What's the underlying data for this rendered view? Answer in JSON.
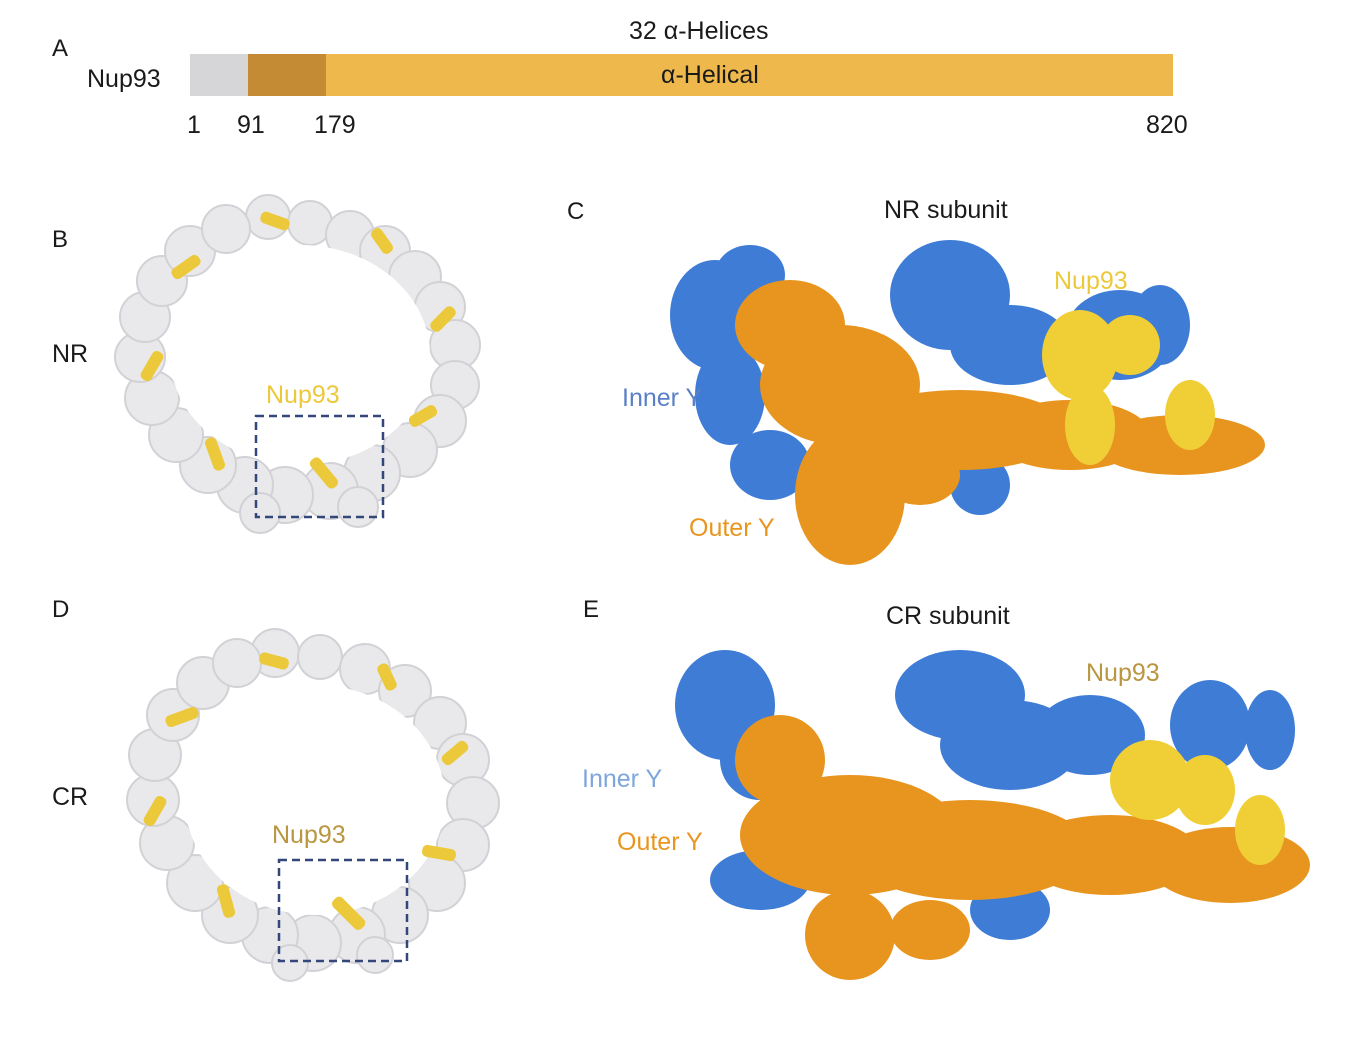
{
  "panels": {
    "a": {
      "letter": "A",
      "protein": "Nup93",
      "top_label": "32 α-Helices",
      "domain_label": "α-Helical",
      "positions": [
        "1",
        "91",
        "179",
        "820"
      ],
      "colors": {
        "n_terminal": "#d6d6d8",
        "linker": "#c48a34",
        "helical": "#eeb84d"
      }
    },
    "b": {
      "letter": "B",
      "ring_label": "NR",
      "nup_label": "Nup93",
      "nup_color": "#ecc93a"
    },
    "c": {
      "letter": "C",
      "title": "NR subunit",
      "inner_label": "Inner Y",
      "outer_label": "Outer Y",
      "nup_label": "Nup93"
    },
    "d": {
      "letter": "D",
      "ring_label": "CR",
      "nup_label": "Nup93",
      "nup_color": "#b9963f"
    },
    "e": {
      "letter": "E",
      "title": "CR subunit",
      "inner_label": "Inner Y",
      "outer_label": "Outer Y",
      "nup_label": "Nup93"
    }
  },
  "colors": {
    "inner_y": "#3e7cd6",
    "outer_y": "#e8951f",
    "nup93": "#f0cf36",
    "box": "#33477a",
    "ring": "#e4e4e6"
  }
}
